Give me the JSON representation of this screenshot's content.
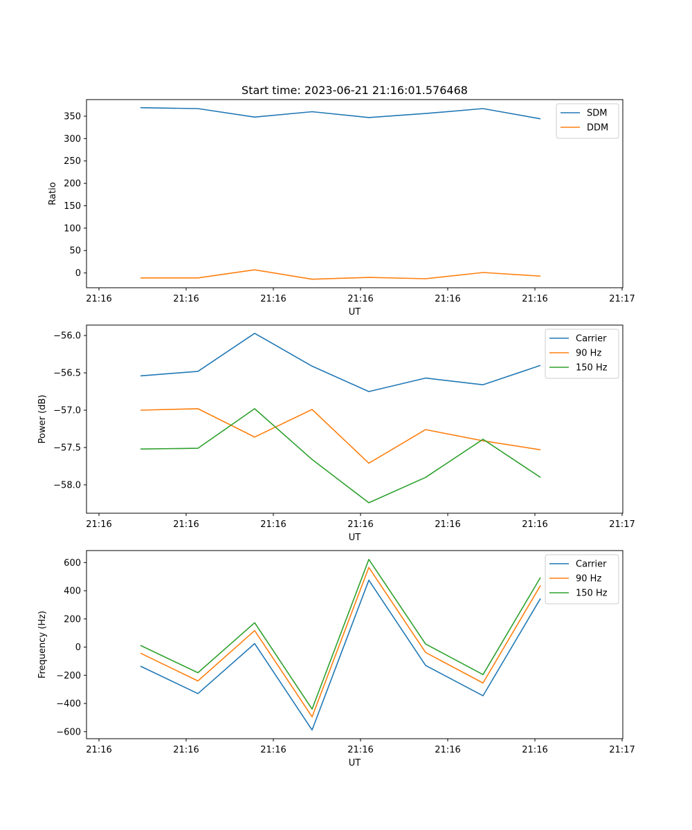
{
  "title": "Start time: 2023-06-21 21:16:01.576468",
  "x_tick_labels": [
    "21:16",
    "21:16",
    "21:16",
    "21:16",
    "21:16",
    "21:16",
    "21:17"
  ],
  "chart_data": [
    {
      "type": "line",
      "xlabel": "UT",
      "ylabel": "Ratio",
      "ylim": [
        -33,
        387
      ],
      "yticks": [
        0,
        50,
        100,
        150,
        200,
        250,
        300,
        350
      ],
      "grid": false,
      "legend": "top-right",
      "series": [
        {
          "name": "SDM",
          "color": "#1f77b4",
          "values": [
            369,
            367,
            348,
            360,
            347,
            356,
            367,
            344
          ]
        },
        {
          "name": "DDM",
          "color": "#ff7f0e",
          "values": [
            -11,
            -11,
            7,
            -14,
            -10,
            -13,
            1,
            -7
          ]
        }
      ]
    },
    {
      "type": "line",
      "xlabel": "UT",
      "ylabel": "Power (dB)",
      "ylim": [
        -58.38,
        -55.86
      ],
      "yticks": [
        -58.0,
        -57.5,
        -57.0,
        -56.5,
        -56.0
      ],
      "grid": false,
      "legend": "top-right",
      "series": [
        {
          "name": "Carrier",
          "color": "#1f77b4",
          "values": [
            -56.54,
            -56.48,
            -55.97,
            -56.41,
            -56.75,
            -56.57,
            -56.66,
            -56.4
          ]
        },
        {
          "name": "90 Hz",
          "color": "#ff7f0e",
          "values": [
            -57.0,
            -56.98,
            -57.36,
            -56.99,
            -57.71,
            -57.26,
            -57.41,
            -57.53
          ]
        },
        {
          "name": "150 Hz",
          "color": "#2ca02c",
          "values": [
            -57.52,
            -57.51,
            -56.98,
            -57.66,
            -58.24,
            -57.9,
            -57.39,
            -57.9
          ]
        }
      ]
    },
    {
      "type": "line",
      "xlabel": "UT",
      "ylabel": "Frequency (Hz)",
      "ylim": [
        -650,
        685
      ],
      "yticks": [
        -600,
        -400,
        -200,
        0,
        200,
        400,
        600
      ],
      "grid": false,
      "legend": "top-right",
      "series": [
        {
          "name": "Carrier",
          "color": "#1f77b4",
          "values": [
            -135,
            -330,
            25,
            -588,
            475,
            -130,
            -345,
            345
          ]
        },
        {
          "name": "90 Hz",
          "color": "#ff7f0e",
          "values": [
            -43,
            -240,
            117,
            -495,
            565,
            -38,
            -255,
            437
          ]
        },
        {
          "name": "150 Hz",
          "color": "#2ca02c",
          "values": [
            12,
            -182,
            173,
            -440,
            622,
            22,
            -195,
            494
          ]
        }
      ]
    }
  ]
}
